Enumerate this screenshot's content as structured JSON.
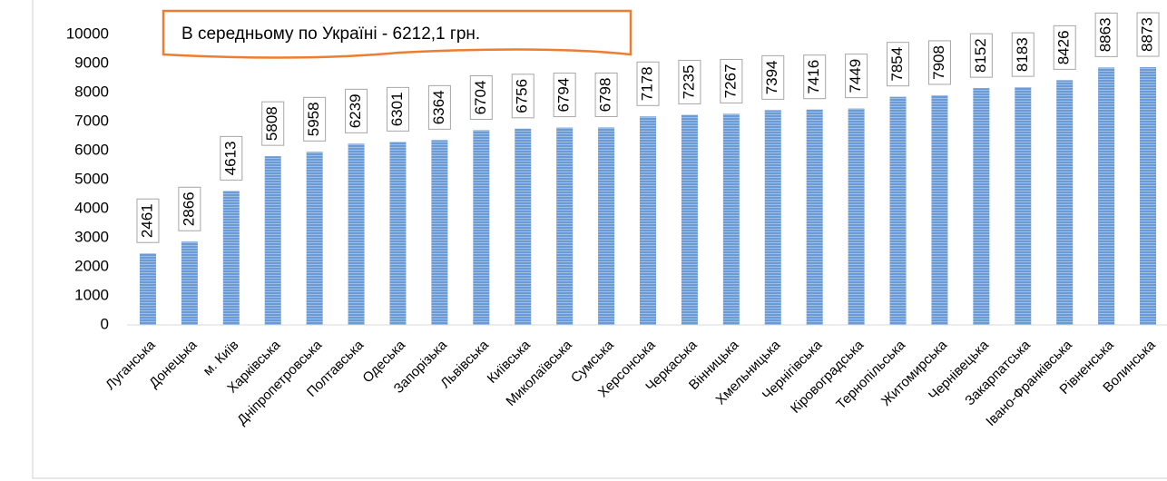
{
  "chart_data": {
    "type": "bar",
    "annotation": "В середньому по Україні - 6212,1 грн.",
    "categories": [
      "Луганська",
      "Донецька",
      "м. Київ",
      "Харківська",
      "Дніпропетровська",
      "Полтавська",
      "Одеська",
      "Запорізька",
      "Львівська",
      "Київська",
      "Миколаївська",
      "Сумська",
      "Херсонська",
      "Черкаська",
      "Вінницька",
      "Хмельницька",
      "Чернігівська",
      "Кіровоградська",
      "Тернопільська",
      "Житомирська",
      "Чернівецька",
      "Закарпатська",
      "Івано-Франківська",
      "Рівненська",
      "Волинська"
    ],
    "values": [
      2461,
      2866,
      4613,
      5808,
      5958,
      6239,
      6301,
      6364,
      6704,
      6756,
      6794,
      6798,
      7178,
      7235,
      7267,
      7394,
      7416,
      7449,
      7854,
      7908,
      8152,
      8183,
      8426,
      8863,
      8873
    ],
    "color": "#6b9bd6",
    "ylim": [
      0,
      10000
    ],
    "yticks": [
      0,
      1000,
      2000,
      3000,
      4000,
      5000,
      6000,
      7000,
      8000,
      9000,
      10000
    ],
    "grid": false
  }
}
